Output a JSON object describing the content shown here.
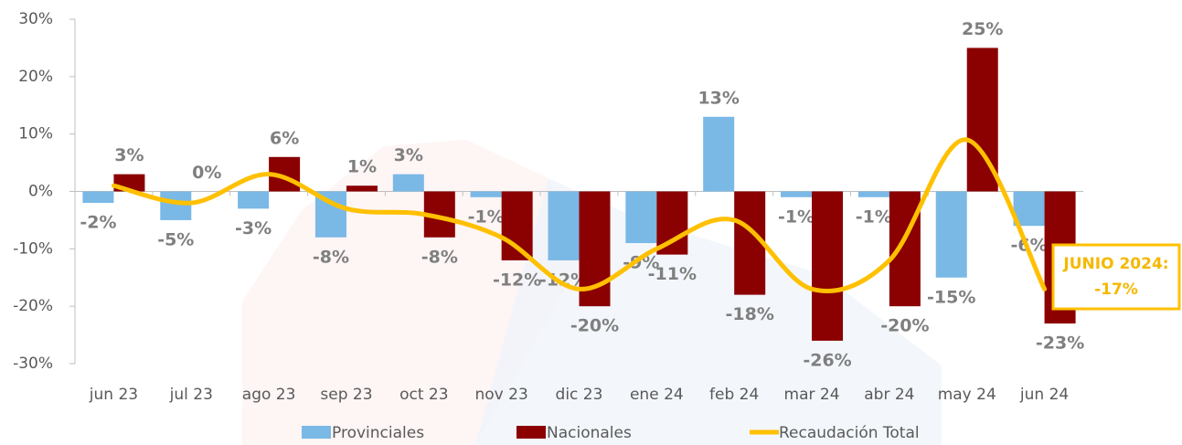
{
  "chart_data": {
    "type": "bar",
    "categories": [
      "jun 23",
      "jul 23",
      "ago 23",
      "sep 23",
      "oct 23",
      "nov 23",
      "dic 23",
      "ene 24",
      "feb 24",
      "mar 24",
      "abr 24",
      "may 24",
      "jun 24"
    ],
    "series": [
      {
        "name": "Provinciales",
        "color": "#7ab8e6",
        "values": [
          -2,
          -5,
          -3,
          -8,
          3,
          -1,
          -12,
          -9,
          13,
          -1,
          -1,
          -15,
          -6
        ],
        "value_labels": [
          "-2%",
          "-5%",
          "-3%",
          "-8%",
          "3%",
          "-1%",
          "-12%",
          "-9%",
          "13%",
          "-1%",
          "-1%",
          "-15%",
          "-6%"
        ]
      },
      {
        "name": "Nacionales",
        "color": "#8b0000",
        "values": [
          3,
          0,
          6,
          1,
          -8,
          -12,
          -20,
          -11,
          -18,
          -26,
          -20,
          25,
          -23
        ],
        "value_labels": [
          "3%",
          "0%",
          "6%",
          "1%",
          "-8%",
          "-12%",
          "-20%",
          "-11%",
          "-18%",
          "-26%",
          "-20%",
          "25%",
          "-23%"
        ]
      },
      {
        "name": "Recaudación Total",
        "color": "#ffc000",
        "type": "line",
        "values": [
          1,
          -2,
          3,
          -3,
          -4,
          -8,
          -17,
          -10,
          -5,
          -17,
          -12,
          9,
          -17
        ]
      }
    ],
    "annotation": {
      "line1": "JUNIO 2024:",
      "line2": "-17%"
    },
    "ylim": [
      -30,
      30
    ],
    "yticks": [
      {
        "value": -30,
        "label": "-30%"
      },
      {
        "value": -20,
        "label": "-20%"
      },
      {
        "value": -10,
        "label": "-10%"
      },
      {
        "value": 0,
        "label": "0%"
      },
      {
        "value": 10,
        "label": "10%"
      },
      {
        "value": 20,
        "label": "20%"
      },
      {
        "value": 30,
        "label": "30%"
      }
    ],
    "legend": "bottom"
  }
}
